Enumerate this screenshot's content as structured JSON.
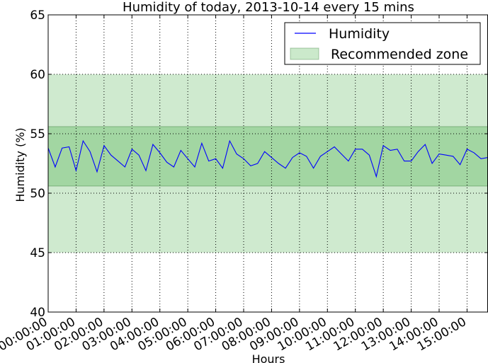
{
  "chart_data": {
    "type": "line",
    "title": "Humidity of today, 2013-10-14 every 15 mins",
    "xlabel": "Hours",
    "ylabel": "Humidity (%)",
    "ylim": [
      40,
      65
    ],
    "yticks": [
      "40",
      "45",
      "50",
      "55",
      "60",
      "65"
    ],
    "xlim": [
      "00:00:00",
      "15:45:00"
    ],
    "xticks": [
      "00:00:00",
      "01:00:00",
      "02:00:00",
      "03:00:00",
      "04:00:00",
      "05:00:00",
      "06:00:00",
      "07:00:00",
      "08:00:00",
      "09:00:00",
      "10:00:00",
      "11:00:00",
      "12:00:00",
      "13:00:00",
      "14:00:00",
      "15:00:00"
    ],
    "grid": true,
    "legend_position": "top-right",
    "recommended_zone": {
      "name": "Recommended zone",
      "inner": [
        50.6,
        55.6
      ],
      "outer": [
        45,
        60
      ],
      "color": "#6bbf6b"
    },
    "series": [
      {
        "name": "Humidity",
        "color": "#0000ff",
        "x": [
          "00:00:00",
          "00:15:00",
          "00:30:00",
          "00:45:00",
          "01:00:00",
          "01:15:00",
          "01:30:00",
          "01:45:00",
          "02:00:00",
          "02:15:00",
          "02:30:00",
          "02:45:00",
          "03:00:00",
          "03:15:00",
          "03:30:00",
          "03:45:00",
          "04:00:00",
          "04:15:00",
          "04:30:00",
          "04:45:00",
          "05:00:00",
          "05:15:00",
          "05:30:00",
          "05:45:00",
          "06:00:00",
          "06:15:00",
          "06:30:00",
          "06:45:00",
          "07:00:00",
          "07:15:00",
          "07:30:00",
          "07:45:00",
          "08:00:00",
          "08:15:00",
          "08:30:00",
          "08:45:00",
          "09:00:00",
          "09:15:00",
          "09:30:00",
          "09:45:00",
          "10:00:00",
          "10:15:00",
          "10:30:00",
          "10:45:00",
          "11:00:00",
          "11:15:00",
          "11:30:00",
          "11:45:00",
          "12:00:00",
          "12:15:00",
          "12:30:00",
          "12:45:00",
          "13:00:00",
          "13:15:00",
          "13:30:00",
          "13:45:00",
          "14:00:00",
          "14:15:00",
          "14:30:00",
          "14:45:00",
          "15:00:00",
          "15:15:00",
          "15:30:00",
          "15:45:00"
        ],
        "values": [
          53.8,
          52.2,
          53.8,
          53.9,
          51.9,
          54.4,
          53.5,
          51.8,
          54.0,
          53.2,
          52.7,
          52.2,
          53.7,
          53.2,
          51.9,
          54.1,
          53.4,
          52.6,
          52.2,
          53.6,
          52.9,
          52.2,
          54.2,
          52.7,
          52.9,
          52.1,
          54.4,
          53.3,
          52.9,
          52.3,
          52.5,
          53.5,
          53.0,
          52.5,
          52.1,
          53.0,
          53.4,
          53.1,
          52.1,
          53.1,
          53.5,
          53.9,
          53.3,
          52.7,
          53.7,
          53.7,
          53.2,
          51.4,
          54.0,
          53.6,
          53.7,
          52.7,
          52.7,
          53.5,
          54.1,
          52.5,
          53.3,
          53.2,
          53.1,
          52.4,
          53.7,
          53.4,
          52.9,
          53.0
        ]
      }
    ]
  }
}
